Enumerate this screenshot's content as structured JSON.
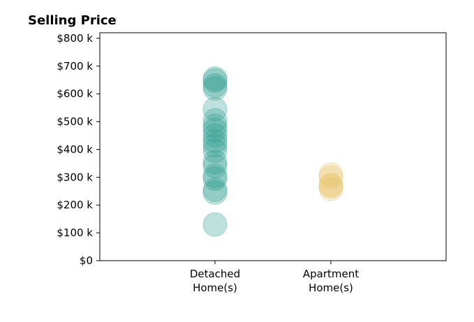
{
  "chart_data": {
    "type": "scatter",
    "title": "Selling Price",
    "xlabel": "",
    "ylabel": "",
    "ylim": [
      0,
      820000
    ],
    "yticks": [
      {
        "value": 0,
        "label": "$0"
      },
      {
        "value": 100000,
        "label": "$100 k"
      },
      {
        "value": 200000,
        "label": "$200 k"
      },
      {
        "value": 300000,
        "label": "$300 k"
      },
      {
        "value": 400000,
        "label": "$400 k"
      },
      {
        "value": 500000,
        "label": "$500 k"
      },
      {
        "value": 600000,
        "label": "$600 k"
      },
      {
        "value": 700000,
        "label": "$700 k"
      },
      {
        "value": 800000,
        "label": "$800 k"
      }
    ],
    "categories": [
      "Detached Home(s)",
      "Apartment Home(s)"
    ],
    "category_labels": [
      [
        "Detached",
        "Home(s)"
      ],
      [
        "Apartment",
        "Home(s)"
      ]
    ],
    "grid": false,
    "series": [
      {
        "category": "Detached Home(s)",
        "color": "#2a9d8f",
        "values": [
          130000,
          245000,
          255000,
          295000,
          305000,
          340000,
          355000,
          395000,
          415000,
          430000,
          450000,
          470000,
          485000,
          505000,
          545000,
          620000,
          630000,
          648000,
          655000
        ]
      },
      {
        "category": "Apartment Home(s)",
        "color": "#e9c46a",
        "values": [
          258000,
          268000,
          272000,
          300000,
          310000
        ]
      }
    ]
  }
}
